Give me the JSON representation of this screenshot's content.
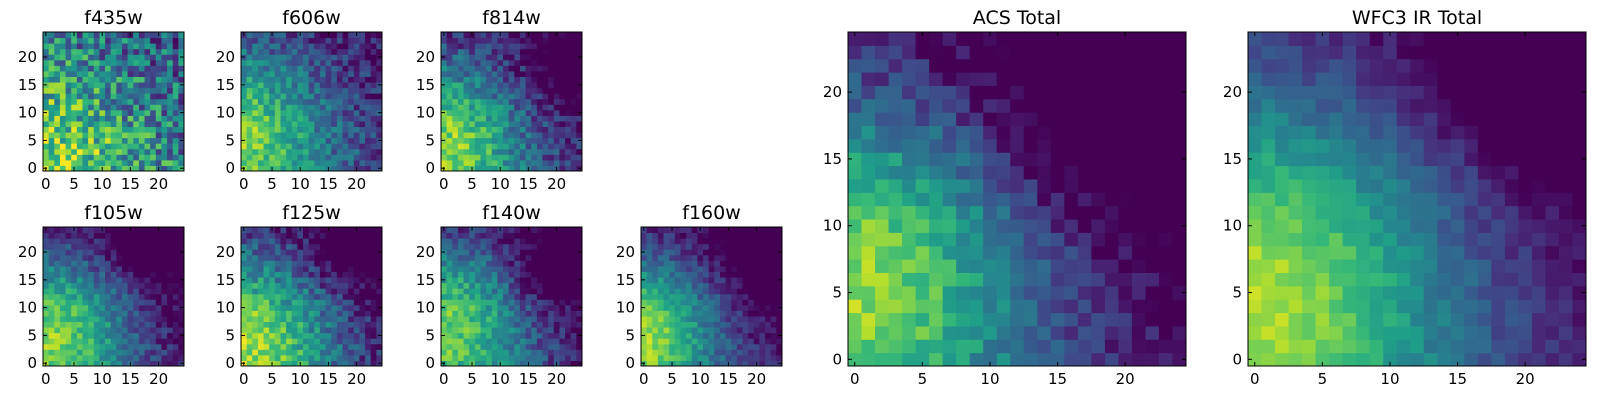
{
  "chart_data": [
    {
      "type": "heatmap",
      "title": "f435w",
      "grid_size": 25,
      "field": {
        "base": 0.56,
        "cx": 0.0,
        "cy": 0.0,
        "amp": 0.28,
        "sig": 12.0,
        "slope": 0.006,
        "noise": 0.3,
        "dark": []
      },
      "xticks": [
        0,
        5,
        10,
        15,
        20
      ],
      "yticks": [
        0,
        5,
        10,
        15,
        20
      ],
      "xlim": [
        -0.5,
        24.5
      ],
      "ylim": [
        -0.5,
        24.5
      ]
    },
    {
      "type": "heatmap",
      "title": "f606w",
      "grid_size": 25,
      "field": {
        "base": 0.34,
        "cx": 0.0,
        "cy": 6.0,
        "amp": 0.5,
        "sig": 10.0,
        "slope": 0.006,
        "noise": 0.16,
        "dark": []
      },
      "xticks": [
        0,
        5,
        10,
        15,
        20
      ],
      "yticks": [
        0,
        5,
        10,
        15,
        20
      ],
      "xlim": [
        -0.5,
        24.5
      ],
      "ylim": [
        -0.5,
        24.5
      ]
    },
    {
      "type": "heatmap",
      "title": "f814w",
      "grid_size": 25,
      "field": {
        "base": 0.3,
        "cx": 1.0,
        "cy": 5.0,
        "amp": 0.58,
        "sig": 9.5,
        "slope": 0.008,
        "noise": 0.16,
        "dark": [
          {
            "x": 22,
            "y": 17,
            "r": 4,
            "a": 0.25
          }
        ]
      },
      "xticks": [
        0,
        5,
        10,
        15,
        20
      ],
      "yticks": [
        0,
        5,
        10,
        15,
        20
      ],
      "xlim": [
        -0.5,
        24.5
      ],
      "ylim": [
        -0.5,
        24.5
      ]
    },
    {
      "type": "heatmap",
      "title": "f105w",
      "grid_size": 25,
      "field": {
        "base": 0.28,
        "cx": 2.0,
        "cy": 6.0,
        "amp": 0.6,
        "sig": 10.0,
        "slope": 0.01,
        "noise": 0.13,
        "dark": [
          {
            "x": 17,
            "y": 21,
            "r": 4,
            "a": 0.22
          }
        ]
      },
      "xticks": [
        0,
        5,
        10,
        15,
        20
      ],
      "yticks": [
        0,
        5,
        10,
        15,
        20
      ],
      "xlim": [
        -0.5,
        24.5
      ],
      "ylim": [
        -0.5,
        24.5
      ]
    },
    {
      "type": "heatmap",
      "title": "f125w",
      "grid_size": 25,
      "field": {
        "base": 0.3,
        "cx": 2.0,
        "cy": 5.0,
        "amp": 0.6,
        "sig": 11.0,
        "slope": 0.01,
        "noise": 0.16,
        "dark": [
          {
            "x": 18,
            "y": 20,
            "r": 4,
            "a": 0.2
          }
        ]
      },
      "xticks": [
        0,
        5,
        10,
        15,
        20
      ],
      "yticks": [
        0,
        5,
        10,
        15,
        20
      ],
      "xlim": [
        -0.5,
        24.5
      ],
      "ylim": [
        -0.5,
        24.5
      ]
    },
    {
      "type": "heatmap",
      "title": "f140w",
      "grid_size": 25,
      "field": {
        "base": 0.3,
        "cx": 2.0,
        "cy": 8.0,
        "amp": 0.55,
        "sig": 10.0,
        "slope": 0.01,
        "noise": 0.14,
        "dark": [
          {
            "x": 18,
            "y": 16,
            "r": 4,
            "a": 0.22
          }
        ]
      },
      "xticks": [
        0,
        5,
        10,
        15,
        20
      ],
      "yticks": [
        0,
        5,
        10,
        15,
        20
      ],
      "xlim": [
        -0.5,
        24.5
      ],
      "ylim": [
        -0.5,
        24.5
      ]
    },
    {
      "type": "heatmap",
      "title": "f160w",
      "grid_size": 25,
      "field": {
        "base": 0.3,
        "cx": 0.0,
        "cy": 6.0,
        "amp": 0.62,
        "sig": 9.0,
        "slope": 0.01,
        "noise": 0.11,
        "dark": [
          {
            "x": 19,
            "y": 21,
            "r": 3,
            "a": 0.3
          },
          {
            "x": 22,
            "y": 15,
            "r": 3,
            "a": 0.2
          }
        ]
      },
      "xticks": [
        0,
        5,
        10,
        15,
        20
      ],
      "yticks": [
        0,
        5,
        10,
        15,
        20
      ],
      "xlim": [
        -0.5,
        24.5
      ],
      "ylim": [
        -0.5,
        24.5
      ]
    },
    {
      "type": "heatmap",
      "title": "ACS Total",
      "grid_size": 25,
      "field": {
        "base": 0.3,
        "cx": 1.0,
        "cy": 7.0,
        "amp": 0.62,
        "sig": 9.0,
        "slope": 0.012,
        "noise": 0.11,
        "dark": [
          {
            "x": 17,
            "y": 18,
            "r": 5,
            "a": 0.14
          }
        ]
      },
      "xticks": [
        0,
        5,
        10,
        15,
        20
      ],
      "yticks": [
        0,
        5,
        10,
        15,
        20
      ],
      "xlim": [
        -0.5,
        24.5
      ],
      "ylim": [
        -0.5,
        24.5
      ]
    },
    {
      "type": "heatmap",
      "title": "WFC3 IR Total",
      "grid_size": 25,
      "field": {
        "base": 0.32,
        "cx": 1.0,
        "cy": 6.0,
        "amp": 0.62,
        "sig": 10.0,
        "slope": 0.01,
        "noise": 0.07,
        "dark": [
          {
            "x": 18,
            "y": 21,
            "r": 3,
            "a": 0.3
          },
          {
            "x": 22,
            "y": 17,
            "r": 2.5,
            "a": 0.2
          }
        ]
      },
      "xticks": [
        0,
        5,
        10,
        15,
        20
      ],
      "yticks": [
        0,
        5,
        10,
        15,
        20
      ],
      "xlim": [
        -0.5,
        24.5
      ],
      "ylim": [
        -0.5,
        24.5
      ]
    }
  ]
}
